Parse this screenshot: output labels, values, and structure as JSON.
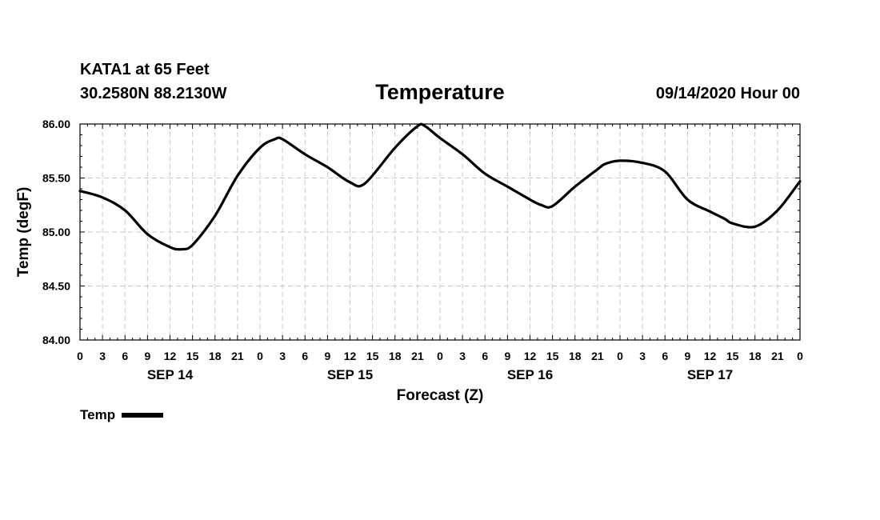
{
  "header": {
    "station": "KATA1 at 65 Feet",
    "coords": "30.2580N 88.2130W",
    "title": "Temperature",
    "valid": "09/14/2020 Hour 00"
  },
  "legend": {
    "label": "Temp"
  },
  "colors": {
    "line": "#000000",
    "grid": "#c8c8c8",
    "background": "#ffffff"
  },
  "chart_data": {
    "type": "line",
    "title": "Temperature",
    "xlabel": "Forecast (Z)",
    "ylabel": "Temp (degF)",
    "ylim": [
      84.0,
      86.0
    ],
    "yticks": [
      84.0,
      84.5,
      85.0,
      85.5,
      86.0
    ],
    "ytick_labels": [
      "84.00",
      "84.50",
      "85.00",
      "85.50",
      "86.00"
    ],
    "xlim_hours": [
      0,
      96
    ],
    "xtick_hours": [
      0,
      3,
      6,
      9,
      12,
      15,
      18,
      21,
      24,
      27,
      30,
      33,
      36,
      39,
      42,
      45,
      48,
      51,
      54,
      57,
      60,
      63,
      66,
      69,
      72,
      75,
      78,
      81,
      84,
      87,
      90,
      93,
      96
    ],
    "xtick_labels": [
      "0",
      "3",
      "6",
      "9",
      "12",
      "15",
      "18",
      "21",
      "0",
      "3",
      "6",
      "9",
      "12",
      "15",
      "18",
      "21",
      "0",
      "3",
      "6",
      "9",
      "12",
      "15",
      "18",
      "21",
      "0",
      "3",
      "6",
      "9",
      "12",
      "15",
      "18",
      "21",
      "0"
    ],
    "day_labels": [
      {
        "hour": 12,
        "label": "SEP 14"
      },
      {
        "hour": 36,
        "label": "SEP 15"
      },
      {
        "hour": 60,
        "label": "SEP 16"
      },
      {
        "hour": 84,
        "label": "SEP 17"
      }
    ],
    "grid": true,
    "legend_position": "bottom-left",
    "series": [
      {
        "name": "Temp",
        "x_hours": [
          0,
          3,
          6,
          9,
          12,
          13.5,
          15,
          18,
          21,
          24,
          26,
          27,
          30,
          33,
          36,
          38,
          42,
          45,
          46,
          48,
          51,
          54,
          57,
          60,
          61.5,
          63,
          66,
          69,
          70,
          72,
          75,
          78,
          81,
          84,
          86,
          87,
          90,
          93,
          96
        ],
        "values": [
          85.38,
          85.32,
          85.2,
          84.98,
          84.86,
          84.84,
          84.88,
          85.15,
          85.52,
          85.78,
          85.86,
          85.86,
          85.72,
          85.6,
          85.46,
          85.45,
          85.78,
          85.98,
          85.98,
          85.87,
          85.72,
          85.54,
          85.42,
          85.3,
          85.25,
          85.24,
          85.42,
          85.58,
          85.63,
          85.66,
          85.64,
          85.56,
          85.3,
          85.19,
          85.12,
          85.08,
          85.05,
          85.2,
          85.47
        ]
      }
    ]
  }
}
